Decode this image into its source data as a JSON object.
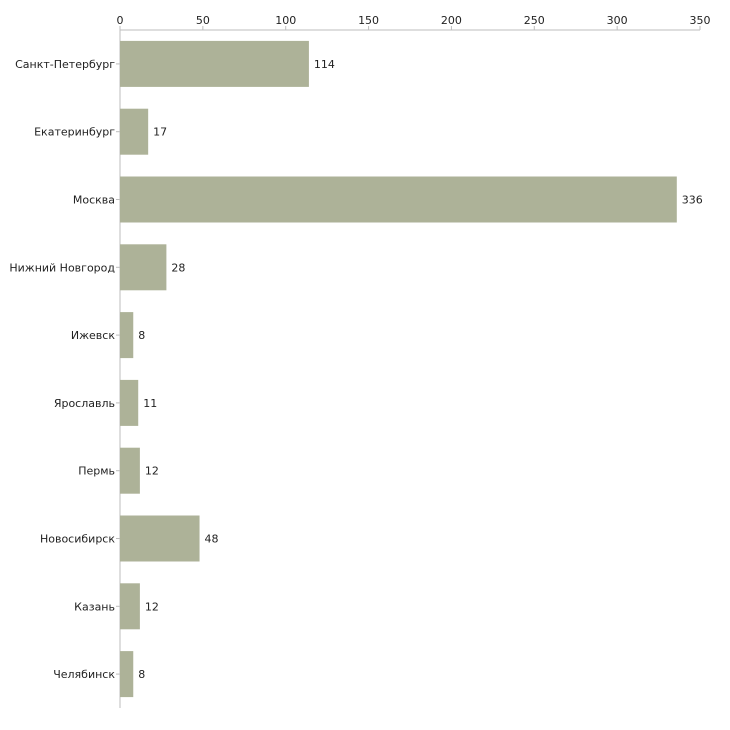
{
  "chart_data": {
    "type": "bar",
    "orientation": "horizontal",
    "title": "",
    "xlabel": "",
    "ylabel": "",
    "categories": [
      "Санкт-Петербург",
      "Екатеринбург",
      "Москва",
      "Нижний Новгород",
      "Ижевск",
      "Ярославль",
      "Пермь",
      "Новосибирск",
      "Казань",
      "Челябинск"
    ],
    "values": [
      114,
      17,
      336,
      28,
      8,
      11,
      12,
      48,
      12,
      8
    ],
    "xlim": [
      0,
      350
    ],
    "x_ticks": [
      0,
      50,
      100,
      150,
      200,
      250,
      300,
      350
    ],
    "axis_position": "top",
    "grid": false,
    "legend": "none",
    "bar_color": "#adb298",
    "data_labels": true
  }
}
